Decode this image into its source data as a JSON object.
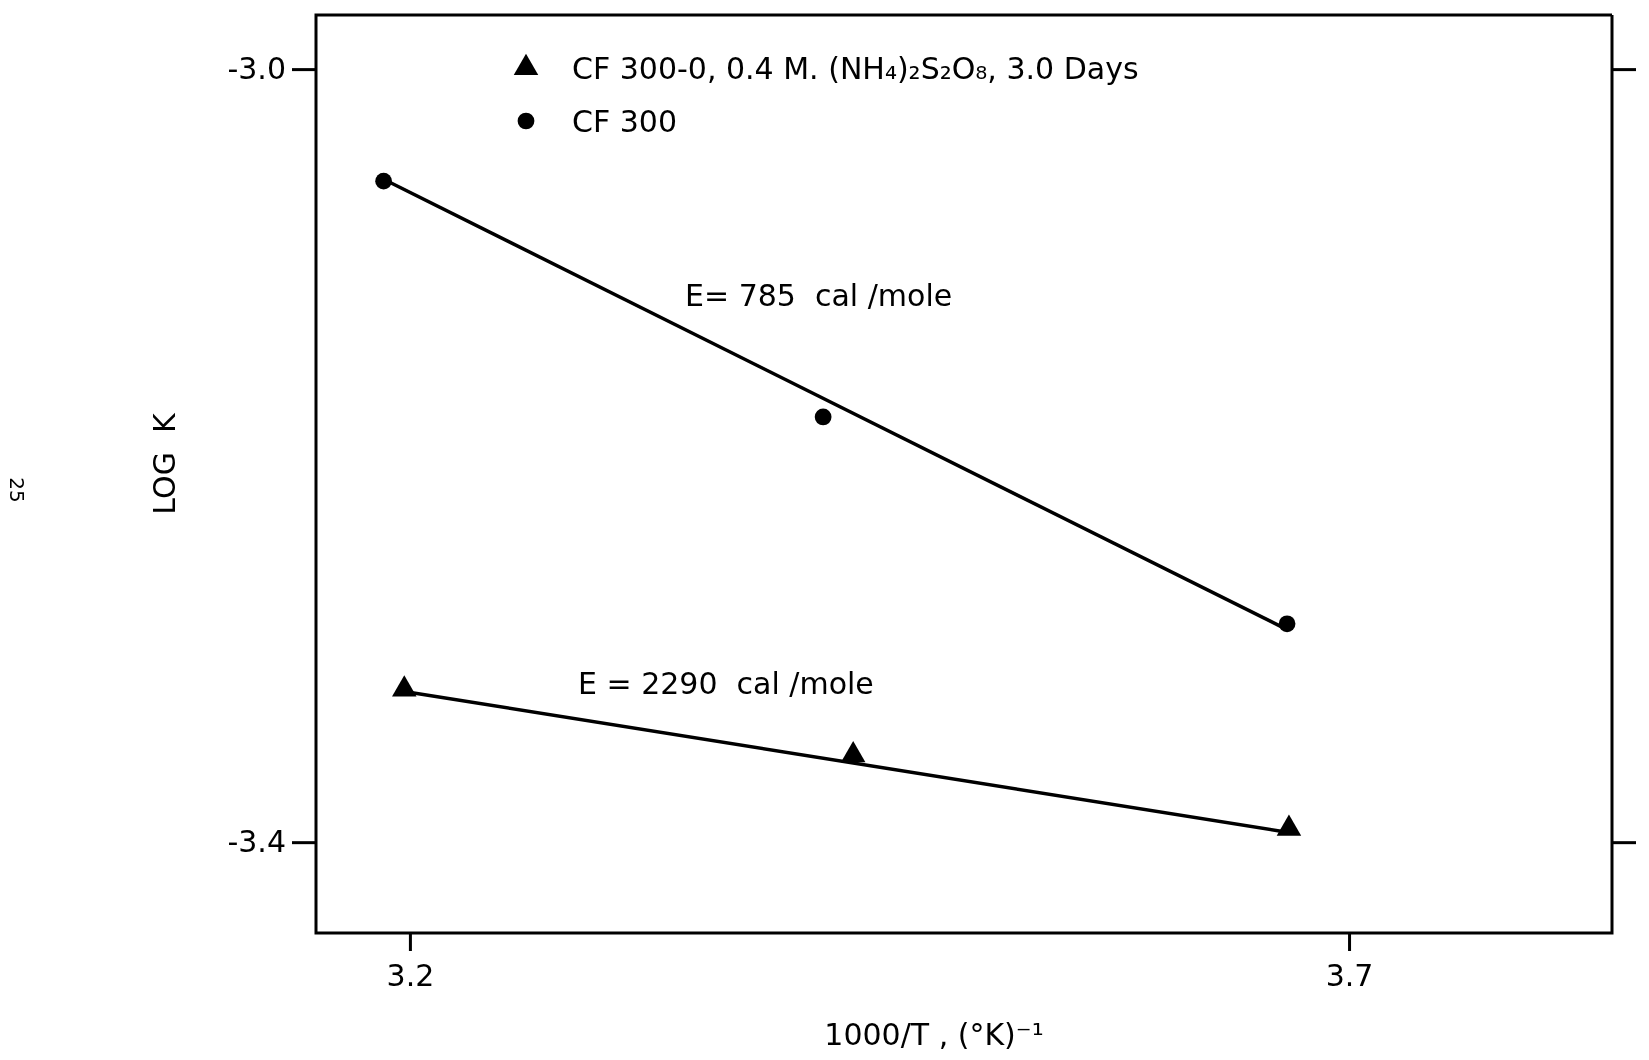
{
  "chart_data": {
    "type": "scatter",
    "xlabel": "1000/T , (°K)⁻¹",
    "ylabel": "LOG  K",
    "xlim": [
      3.15,
      3.84
    ],
    "xticks": [
      3.2,
      3.7
    ],
    "ylim": [
      -3.447,
      -2.972
    ],
    "yticks": [
      {
        "value": -3.0,
        "label": "-3.0"
      },
      {
        "value": -3.4,
        "label": "-3.4"
      }
    ],
    "grid": false,
    "legend": "top left",
    "series": [
      {
        "name": "CF 300-0, 0.4 M. (NH₄)₂S₂O₈, 3.0 Days",
        "marker": "triangle",
        "color": "#000000",
        "x": [
          3.197,
          3.436,
          3.668
        ],
        "values": [
          -3.321,
          -3.355,
          -3.393
        ]
      },
      {
        "name": "CF 300",
        "marker": "circle",
        "color": "#000000",
        "x": [
          3.186,
          3.42,
          3.667
        ],
        "values": [
          -3.058,
          -3.18,
          -3.287
        ]
      },
      {
        "type": "line",
        "marker": "none",
        "color": "#000000",
        "x": [
          3.186,
          3.667
        ],
        "values": [
          -3.057,
          -3.29
        ]
      },
      {
        "type": "line",
        "marker": "none",
        "color": "#000000",
        "x": [
          3.197,
          3.668
        ],
        "values": [
          -3.322,
          -3.395
        ]
      }
    ],
    "annotations": [
      "E= 785  cal /mole",
      "E = 2290  cal /mole",
      "25"
    ]
  }
}
